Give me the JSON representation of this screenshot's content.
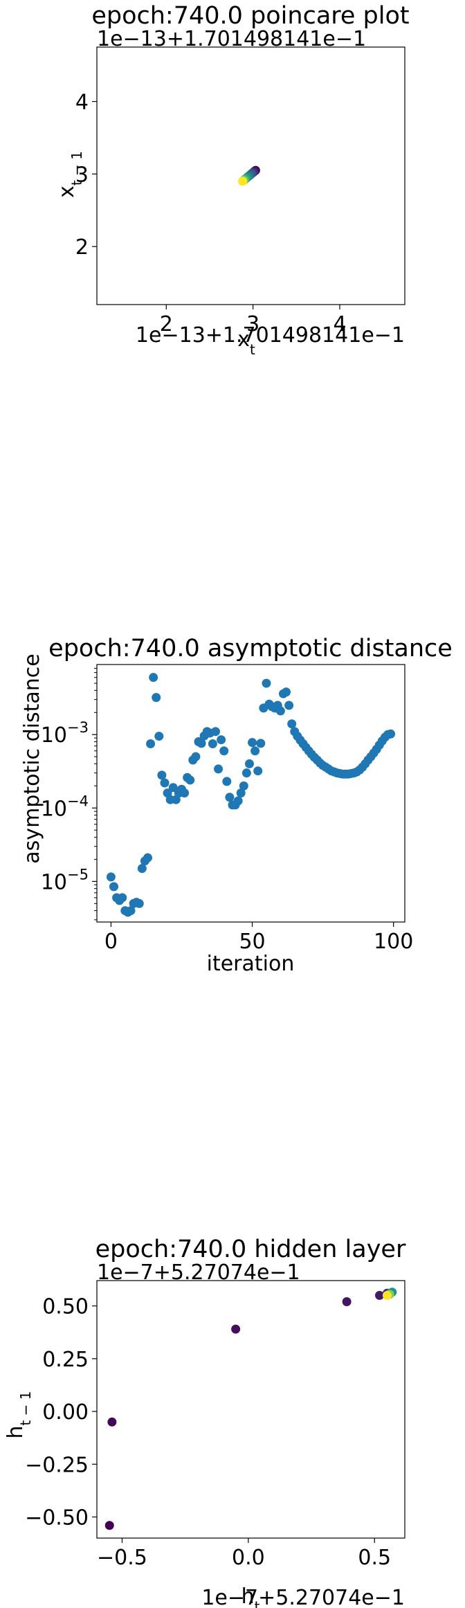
{
  "chart_data": [
    {
      "type": "scatter",
      "title": "epoch:740.0 poincare plot",
      "xlabel": "x_t",
      "ylabel": "x_{t-1}",
      "x_offset_text": "1e−13+1.701498141e−1",
      "y_offset_text": "1e−13+1.701498141e−1",
      "xlim": [
        1.2,
        4.75
      ],
      "ylim": [
        1.2,
        4.75
      ],
      "xticks": [
        {
          "v": 2,
          "label": "2"
        },
        {
          "v": 3,
          "label": "3"
        },
        {
          "v": 4,
          "label": "4"
        }
      ],
      "yticks": [
        {
          "v": 2,
          "label": "2"
        },
        {
          "v": 3,
          "label": "3"
        },
        {
          "v": 4,
          "label": "4"
        }
      ],
      "colormap": "viridis",
      "points": [
        {
          "x": 3.03,
          "y": 3.05,
          "c": 0.0
        },
        {
          "x": 3.02,
          "y": 3.04,
          "c": 0.05
        },
        {
          "x": 3.01,
          "y": 3.03,
          "c": 0.1
        },
        {
          "x": 3.0,
          "y": 3.02,
          "c": 0.15
        },
        {
          "x": 2.99,
          "y": 3.01,
          "c": 0.2
        },
        {
          "x": 2.98,
          "y": 3.0,
          "c": 0.25
        },
        {
          "x": 2.97,
          "y": 2.99,
          "c": 0.3
        },
        {
          "x": 2.96,
          "y": 2.98,
          "c": 0.35
        },
        {
          "x": 2.95,
          "y": 2.97,
          "c": 0.4
        },
        {
          "x": 2.94,
          "y": 2.96,
          "c": 0.45
        },
        {
          "x": 2.93,
          "y": 2.95,
          "c": 0.5
        },
        {
          "x": 2.92,
          "y": 2.94,
          "c": 0.55
        },
        {
          "x": 2.91,
          "y": 2.93,
          "c": 0.6
        },
        {
          "x": 2.9,
          "y": 2.92,
          "c": 0.7
        },
        {
          "x": 2.89,
          "y": 2.91,
          "c": 0.8
        },
        {
          "x": 2.88,
          "y": 2.9,
          "c": 1.0
        }
      ]
    },
    {
      "type": "scatter",
      "title": "epoch:740.0 asymptotic distance",
      "xlabel": "iteration",
      "ylabel": "asymptotic distance",
      "yscale": "log",
      "xlim": [
        -5,
        104
      ],
      "ylim": [
        2.8e-06,
        0.009
      ],
      "color": "#1f77b4",
      "xticks": [
        {
          "v": 0,
          "label": "0"
        },
        {
          "v": 50,
          "label": "50"
        },
        {
          "v": 100,
          "label": "100"
        }
      ],
      "yticks": [
        {
          "v": 1e-05,
          "base": "10",
          "exp": "−5"
        },
        {
          "v": 0.0001,
          "base": "10",
          "exp": "−4"
        },
        {
          "v": 0.001,
          "base": "10",
          "exp": "−3"
        }
      ],
      "x": [
        0,
        1,
        2,
        3,
        4,
        5,
        6,
        7,
        8,
        9,
        10,
        11,
        12,
        13,
        14,
        15,
        16,
        17,
        18,
        19,
        20,
        21,
        22,
        23,
        24,
        25,
        26,
        27,
        28,
        29,
        30,
        31,
        32,
        33,
        34,
        35,
        36,
        37,
        38,
        39,
        40,
        41,
        42,
        43,
        44,
        45,
        46,
        47,
        48,
        49,
        50,
        51,
        52,
        53,
        54,
        55,
        56,
        57,
        58,
        59,
        60,
        61,
        62,
        63,
        64,
        65,
        66,
        67,
        68,
        69,
        70,
        71,
        72,
        73,
        74,
        75,
        76,
        77,
        78,
        79,
        80,
        81,
        82,
        83,
        84,
        85,
        86,
        87,
        88,
        89,
        90,
        91,
        92,
        93,
        94,
        95,
        96,
        97,
        98,
        99
      ],
      "y": [
        1.15e-05,
        8.5e-06,
        6e-06,
        5.5e-06,
        6e-06,
        4e-06,
        3.8e-06,
        4e-06,
        5e-06,
        5.2e-06,
        5e-06,
        1.5e-05,
        1.9e-05,
        2.1e-05,
        0.00075,
        0.006,
        0.0032,
        0.00095,
        0.00028,
        0.00022,
        0.00016,
        0.00013,
        0.00019,
        0.00013,
        0.00016,
        0.00018,
        0.00016,
        0.00026,
        0.00024,
        0.00045,
        0.0005,
        0.0008,
        0.00076,
        0.00096,
        0.0011,
        0.00105,
        0.00075,
        0.0011,
        0.00034,
        0.00085,
        0.0006,
        0.00023,
        0.00014,
        0.00011,
        0.00011,
        0.000125,
        0.00016,
        0.0002,
        0.0003,
        0.0004,
        0.00078,
        0.0006,
        0.00032,
        0.00076,
        0.0023,
        0.005,
        0.0026,
        0.0024,
        0.0023,
        0.0025,
        0.0021,
        0.0036,
        0.0038,
        0.0025,
        0.0014,
        0.0011,
        0.00095,
        0.00084,
        0.00075,
        0.00067,
        0.0006,
        0.00054,
        0.00049,
        0.00045,
        0.00041,
        0.00038,
        0.00036,
        0.00034,
        0.00032,
        0.00031,
        0.0003,
        0.000295,
        0.00029,
        0.00029,
        0.00029,
        0.000295,
        0.0003,
        0.00031,
        0.00033,
        0.00036,
        0.0004,
        0.00045,
        0.0005,
        0.00056,
        0.00063,
        0.00072,
        0.00082,
        0.00092,
        0.001,
        0.00102
      ]
    },
    {
      "type": "scatter",
      "title": "epoch:740.0 hidden layer",
      "xlabel": "h_t",
      "ylabel": "h_{t-1}",
      "x_offset_text": "1e−7+5.27074e−1",
      "y_offset_text": "1e−7+5.27074e−1",
      "xlim": [
        -0.6,
        0.62
      ],
      "ylim": [
        -0.6,
        0.62
      ],
      "colormap": "viridis",
      "xticks": [
        {
          "v": -0.5,
          "label": "−0.5"
        },
        {
          "v": 0.0,
          "label": "0.0"
        },
        {
          "v": 0.5,
          "label": "0.5"
        }
      ],
      "yticks": [
        {
          "v": 0.5,
          "label": "0.50"
        },
        {
          "v": 0.25,
          "label": "0.25"
        },
        {
          "v": 0.0,
          "label": "0.00"
        },
        {
          "v": -0.25,
          "label": "−0.25"
        },
        {
          "v": -0.5,
          "label": "−0.50"
        }
      ],
      "points": [
        {
          "x": -0.55,
          "y": -0.54,
          "c": 0.0
        },
        {
          "x": -0.54,
          "y": -0.05,
          "c": 0.02
        },
        {
          "x": -0.05,
          "y": 0.39,
          "c": 0.04
        },
        {
          "x": 0.39,
          "y": 0.52,
          "c": 0.06
        },
        {
          "x": 0.52,
          "y": 0.55,
          "c": 0.08
        },
        {
          "x": 0.55,
          "y": 0.56,
          "c": 0.1
        },
        {
          "x": 0.56,
          "y": 0.56,
          "c": 0.3
        },
        {
          "x": 0.57,
          "y": 0.565,
          "c": 0.5
        },
        {
          "x": 0.56,
          "y": 0.555,
          "c": 0.8
        },
        {
          "x": 0.55,
          "y": 0.55,
          "c": 1.0
        }
      ]
    }
  ]
}
